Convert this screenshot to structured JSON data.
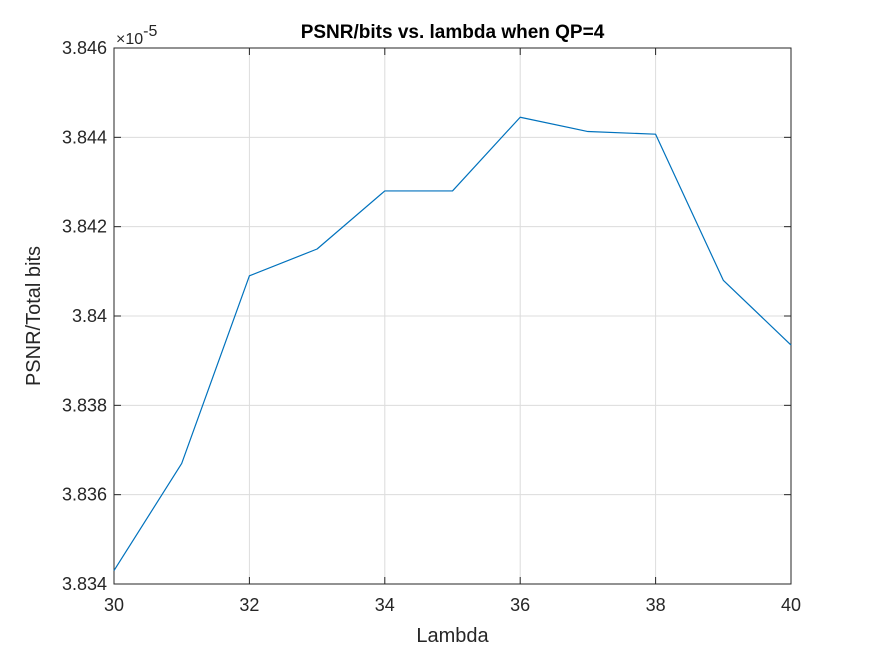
{
  "chart_data": {
    "type": "line",
    "title": "PSNR/bits vs. lambda when QP=4",
    "xlabel": "Lambda",
    "ylabel": "PSNR/Total bits",
    "y_exponent_label": "×10",
    "y_exponent": "-5",
    "xlim": [
      30,
      40
    ],
    "ylim": [
      3.834,
      3.846
    ],
    "x_ticks": [
      30,
      32,
      34,
      36,
      38,
      40
    ],
    "x_tick_labels": [
      "30",
      "32",
      "34",
      "36",
      "38",
      "40"
    ],
    "y_ticks": [
      3.834,
      3.836,
      3.838,
      3.84,
      3.842,
      3.844,
      3.846
    ],
    "y_tick_labels": [
      "3.834",
      "3.836",
      "3.838",
      "3.84",
      "3.842",
      "3.844",
      "3.846"
    ],
    "grid": true,
    "series": [
      {
        "color": "#0072BD",
        "x": [
          30,
          31,
          32,
          33,
          34,
          35,
          36,
          37,
          38,
          39,
          40
        ],
        "y": [
          3.8343,
          3.8367,
          3.8409,
          3.8415,
          3.8428,
          3.8428,
          3.84445,
          3.84413,
          3.84407,
          3.8408,
          3.83935
        ]
      }
    ]
  }
}
